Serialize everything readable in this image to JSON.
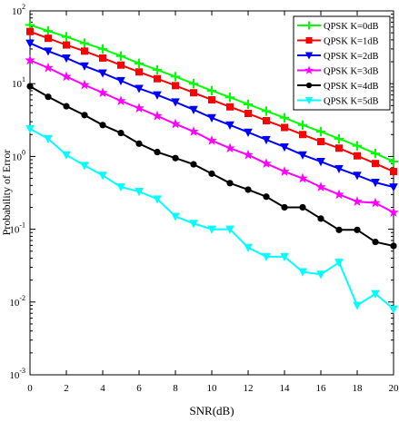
{
  "chart_data": {
    "type": "line",
    "title": "",
    "xlabel": "SNR(dB)",
    "ylabel": "Probability of Error",
    "xlim": [
      0,
      20
    ],
    "ylim_log10": [
      -3,
      2
    ],
    "yscale": "log",
    "grid": false,
    "legend_position": "top-right",
    "x": [
      0,
      1,
      2,
      3,
      4,
      5,
      6,
      7,
      8,
      9,
      10,
      11,
      12,
      13,
      14,
      15,
      16,
      17,
      18,
      19,
      20
    ],
    "xtick_labels": [
      "0",
      "2",
      "4",
      "6",
      "8",
      "10",
      "12",
      "14",
      "16",
      "18",
      "20"
    ],
    "ytick_labels": [
      {
        "base": "10",
        "exp": "2"
      },
      {
        "base": "10",
        "exp": "1"
      },
      {
        "base": "10",
        "exp": "0"
      },
      {
        "base": "10",
        "exp": "-1"
      },
      {
        "base": "10",
        "exp": "-2"
      },
      {
        "base": "10",
        "exp": "-3"
      }
    ],
    "series": [
      {
        "name": "QPSK K=0dB",
        "color": "#00ff00",
        "marker": "plus",
        "values": [
          64,
          53,
          44,
          36,
          30,
          24,
          19,
          15.5,
          12.5,
          10,
          8,
          6.5,
          5.2,
          4.2,
          3.4,
          2.7,
          2.2,
          1.75,
          1.4,
          1.1,
          0.85
        ]
      },
      {
        "name": "QPSK K=1dB",
        "color": "#ff0000",
        "marker": "square",
        "values": [
          52,
          42,
          34,
          28,
          22.5,
          18,
          14.5,
          11.7,
          9.4,
          7.5,
          6,
          4.8,
          3.9,
          3.1,
          2.5,
          2,
          1.6,
          1.3,
          1.02,
          0.8,
          0.62
        ]
      },
      {
        "name": "QPSK K=2dB",
        "color": "#0000ff",
        "marker": "triangle-down",
        "values": [
          36,
          28,
          22.5,
          17.5,
          14,
          11,
          8.6,
          7,
          5.6,
          4.4,
          3.4,
          2.7,
          2.15,
          1.7,
          1.35,
          1.05,
          0.85,
          0.68,
          0.55,
          0.44,
          0.38
        ]
      },
      {
        "name": "QPSK K=3dB",
        "color": "#ff00ff",
        "marker": "star",
        "values": [
          21,
          16.5,
          12.5,
          9.6,
          7.5,
          5.8,
          4.6,
          3.6,
          2.8,
          2.2,
          1.65,
          1.3,
          1.05,
          0.8,
          0.62,
          0.5,
          0.38,
          0.3,
          0.24,
          0.23,
          0.17
        ]
      },
      {
        "name": "QPSK K=4dB",
        "color": "#000000",
        "marker": "circle",
        "values": [
          9.2,
          6.6,
          4.9,
          3.7,
          2.7,
          2.1,
          1.5,
          1.15,
          0.95,
          0.78,
          0.58,
          0.43,
          0.35,
          0.28,
          0.2,
          0.2,
          0.14,
          0.098,
          0.098,
          0.067,
          0.059
        ]
      },
      {
        "name": "QPSK K=5dB",
        "color": "#00ffff",
        "marker": "triangle-down",
        "values": [
          2.4,
          1.75,
          1.05,
          0.75,
          0.55,
          0.38,
          0.33,
          0.26,
          0.15,
          0.12,
          0.1,
          0.1,
          0.056,
          0.042,
          0.042,
          0.026,
          0.024,
          0.035,
          0.009,
          0.013,
          0.008
        ]
      }
    ]
  }
}
